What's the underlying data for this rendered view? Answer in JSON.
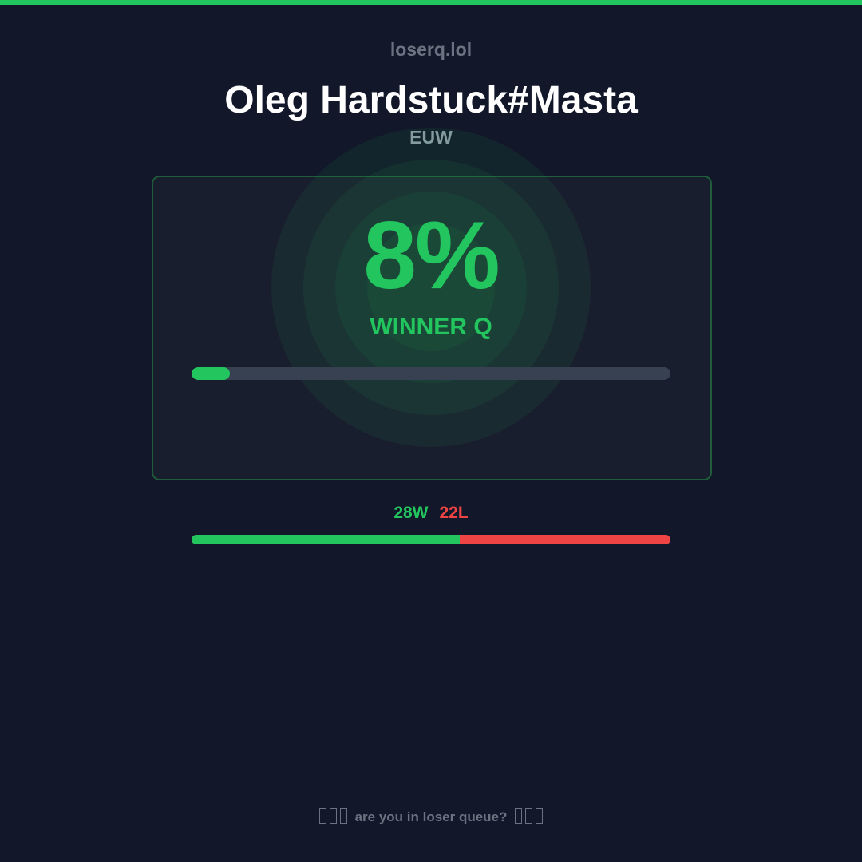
{
  "site": "loserq.lol",
  "player": {
    "name": "Oleg Hardstuck#Masta",
    "region": "EUW"
  },
  "result": {
    "percent_label": "8%",
    "percent": 8,
    "verdict": "WINNER Q"
  },
  "record": {
    "wins_label": "28W",
    "losses_label": "22L",
    "wins": 28,
    "losses": 22
  },
  "footer": {
    "text": "are you in loser queue?",
    "icon": "missing-glyph-icon"
  },
  "colors": {
    "accent": "#22c55e",
    "loss": "#ef4444",
    "background": "#121829"
  }
}
